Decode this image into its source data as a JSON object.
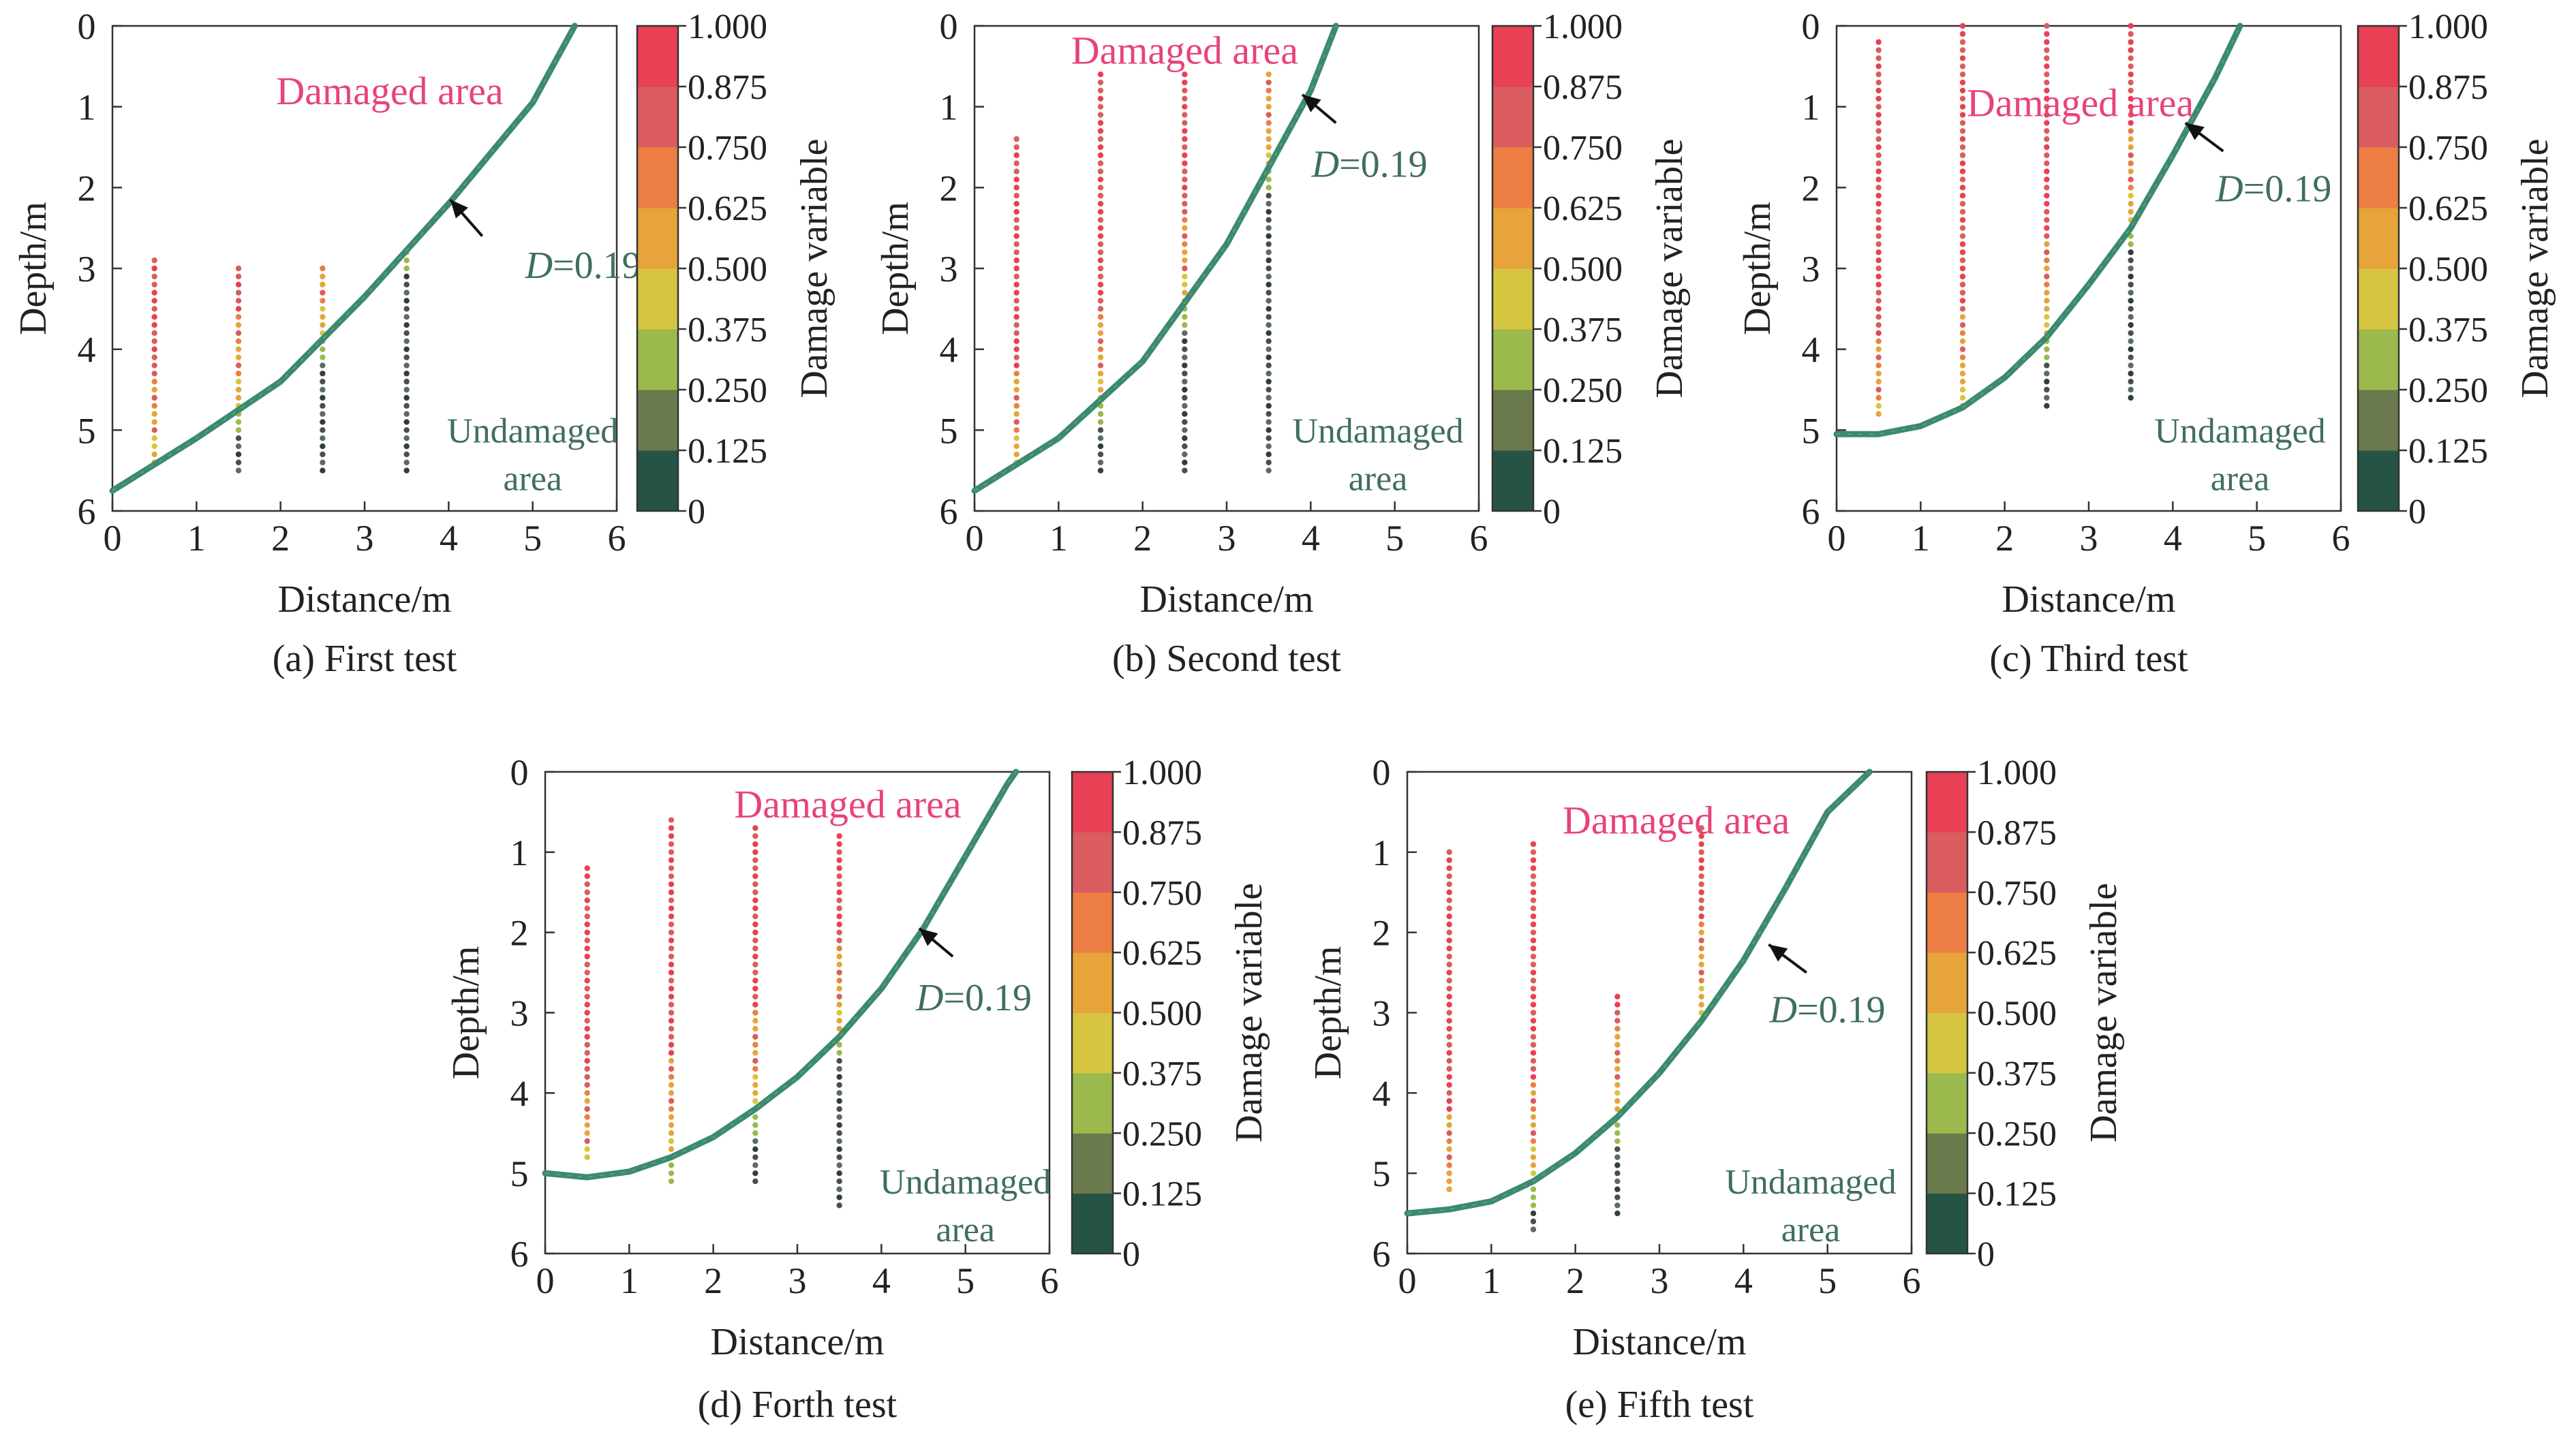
{
  "colors": {
    "curve": "#3a8a72",
    "damaged_label": "#e8437a",
    "undamaged_label": "#3f6e60",
    "d_label": "#3f6e60",
    "colorbar": [
      "#255446",
      "#6b7a4c",
      "#9bb94d",
      "#d6c541",
      "#e6a43a",
      "#ec7e44",
      "#db5c5f",
      "#e84054"
    ]
  },
  "chart_data": [
    {
      "type": "scatter",
      "caption": "(a) First test",
      "xlabel": "Distance/m",
      "ylabel": "Depth/m",
      "xlim": [
        0,
        6
      ],
      "ylim": [
        6,
        0
      ],
      "xticks": [
        "0",
        "1",
        "2",
        "3",
        "4",
        "5",
        "6"
      ],
      "yticks": [
        "0",
        "1",
        "2",
        "3",
        "4",
        "5",
        "6"
      ],
      "damaged_label": "Damaged area",
      "undamaged_label": [
        "Undamaged",
        "area"
      ],
      "d_label": {
        "var": "D",
        "value": "=0.19"
      },
      "curve": {
        "x": [
          0,
          1,
          2,
          3,
          4,
          5,
          5.5
        ],
        "y": [
          5.75,
          5.1,
          4.4,
          3.35,
          2.2,
          0.95,
          0
        ]
      },
      "scan_lines": [
        {
          "x": 0.5,
          "y_top": 2.9,
          "y_bottom": 5.45
        },
        {
          "x": 1.5,
          "y_top": 3.0,
          "y_bottom": 5.5
        },
        {
          "x": 2.5,
          "y_top": 3.0,
          "y_bottom": 5.5
        },
        {
          "x": 3.5,
          "y_top": 2.8,
          "y_bottom": 5.5
        }
      ],
      "colorbar": {
        "label": "Damage variable",
        "ticks": [
          "0",
          "0.125",
          "0.250",
          "0.375",
          "0.500",
          "0.625",
          "0.750",
          "0.875",
          "1.000"
        ]
      }
    },
    {
      "type": "scatter",
      "caption": "(b) Second test",
      "xlabel": "Distance/m",
      "ylabel": "Depth/m",
      "xlim": [
        0,
        6
      ],
      "ylim": [
        6,
        0
      ],
      "xticks": [
        "0",
        "1",
        "2",
        "3",
        "4",
        "5",
        "6"
      ],
      "yticks": [
        "0",
        "1",
        "2",
        "3",
        "4",
        "5",
        "6"
      ],
      "damaged_label": "Damaged area",
      "undamaged_label": [
        "Undamaged",
        "area"
      ],
      "d_label": {
        "var": "D",
        "value": "=0.19"
      },
      "curve": {
        "x": [
          0,
          1,
          2,
          3,
          3.5,
          4,
          4.3
        ],
        "y": [
          5.75,
          5.1,
          4.15,
          2.7,
          1.75,
          0.8,
          0
        ]
      },
      "scan_lines": [
        {
          "x": 0.5,
          "y_top": 1.4,
          "y_bottom": 5.4
        },
        {
          "x": 1.5,
          "y_top": 0.6,
          "y_bottom": 5.5
        },
        {
          "x": 2.5,
          "y_top": 0.6,
          "y_bottom": 5.5
        },
        {
          "x": 3.5,
          "y_top": 0.6,
          "y_bottom": 5.5
        }
      ],
      "colorbar": {
        "label": "Damage variable",
        "ticks": [
          "0",
          "0.125",
          "0.250",
          "0.375",
          "0.500",
          "0.625",
          "0.750",
          "0.875",
          "1.000"
        ]
      }
    },
    {
      "type": "scatter",
      "caption": "(c) Third test",
      "xlabel": "Distance/m",
      "ylabel": "Depth/m",
      "xlim": [
        0,
        6
      ],
      "ylim": [
        6,
        0
      ],
      "xticks": [
        "0",
        "1",
        "2",
        "3",
        "4",
        "5",
        "6"
      ],
      "yticks": [
        "0",
        "1",
        "2",
        "3",
        "4",
        "5",
        "6"
      ],
      "damaged_label": "Damaged area",
      "undamaged_label": [
        "Undamaged",
        "area"
      ],
      "d_label": {
        "var": "D",
        "value": "=0.19"
      },
      "curve": {
        "x": [
          0,
          0.5,
          1,
          1.5,
          2,
          2.5,
          3,
          3.5,
          4,
          4.5,
          4.8
        ],
        "y": [
          5.05,
          5.05,
          4.95,
          4.72,
          4.35,
          3.85,
          3.2,
          2.5,
          1.6,
          0.65,
          0
        ]
      },
      "scan_lines": [
        {
          "x": 0.5,
          "y_top": 0.2,
          "y_bottom": 4.85
        },
        {
          "x": 1.5,
          "y_top": 0.0,
          "y_bottom": 4.7
        },
        {
          "x": 2.5,
          "y_top": 0.0,
          "y_bottom": 4.7
        },
        {
          "x": 3.5,
          "y_top": 0.0,
          "y_bottom": 4.6
        }
      ],
      "colorbar": {
        "label": "Damage variable",
        "ticks": [
          "0",
          "0.125",
          "0.250",
          "0.375",
          "0.500",
          "0.625",
          "0.750",
          "0.875",
          "1.000"
        ]
      }
    },
    {
      "type": "scatter",
      "caption": "(d) Forth test",
      "xlabel": "Distance/m",
      "ylabel": "Depth/m",
      "xlim": [
        0,
        6
      ],
      "ylim": [
        6,
        0
      ],
      "xticks": [
        "0",
        "1",
        "2",
        "3",
        "4",
        "5",
        "6"
      ],
      "yticks": [
        "0",
        "1",
        "2",
        "3",
        "4",
        "5",
        "6"
      ],
      "damaged_label": "Damaged area",
      "undamaged_label": [
        "Undamaged",
        "area"
      ],
      "d_label": {
        "var": "D",
        "value": "=0.19"
      },
      "curve": {
        "x": [
          0,
          0.5,
          1,
          1.5,
          2,
          2.5,
          3,
          3.5,
          4,
          4.5,
          5,
          5.5,
          5.6
        ],
        "y": [
          5.0,
          5.05,
          4.98,
          4.8,
          4.55,
          4.2,
          3.8,
          3.3,
          2.7,
          1.95,
          1.05,
          0.15,
          0
        ]
      },
      "scan_lines": [
        {
          "x": 0.5,
          "y_top": 1.2,
          "y_bottom": 4.85
        },
        {
          "x": 1.5,
          "y_top": 0.6,
          "y_bottom": 5.1
        },
        {
          "x": 2.5,
          "y_top": 0.7,
          "y_bottom": 5.1
        },
        {
          "x": 3.5,
          "y_top": 0.8,
          "y_bottom": 5.45
        }
      ],
      "colorbar": {
        "label": "Damage variable",
        "ticks": [
          "0",
          "0.125",
          "0.250",
          "0.375",
          "0.500",
          "0.625",
          "0.750",
          "0.875",
          "1.000"
        ]
      }
    },
    {
      "type": "scatter",
      "caption": "(e) Fifth test",
      "xlabel": "Distance/m",
      "ylabel": "Depth/m",
      "xlim": [
        0,
        6
      ],
      "ylim": [
        6,
        0
      ],
      "xticks": [
        "0",
        "1",
        "2",
        "3",
        "4",
        "5",
        "6"
      ],
      "yticks": [
        "0",
        "1",
        "2",
        "3",
        "4",
        "5",
        "6"
      ],
      "damaged_label": "Damaged area",
      "undamaged_label": [
        "Undamaged",
        "area"
      ],
      "d_label": {
        "var": "D",
        "value": "=0.19"
      },
      "curve": {
        "x": [
          0,
          0.5,
          1,
          1.5,
          2,
          2.5,
          3,
          3.5,
          4,
          4.5,
          5,
          5.5
        ],
        "y": [
          5.5,
          5.45,
          5.35,
          5.1,
          4.75,
          4.3,
          3.75,
          3.1,
          2.35,
          1.45,
          0.5,
          0
        ]
      },
      "scan_lines": [
        {
          "x": 0.5,
          "y_top": 1.0,
          "y_bottom": 5.2
        },
        {
          "x": 1.5,
          "y_top": 0.9,
          "y_bottom": 5.7
        },
        {
          "x": 2.5,
          "y_top": 2.8,
          "y_bottom": 5.5
        },
        {
          "x": 3.5,
          "y_top": 0.7,
          "y_bottom": 3.1
        }
      ],
      "colorbar": {
        "label": "Damage variable",
        "ticks": [
          "0",
          "0.125",
          "0.250",
          "0.375",
          "0.500",
          "0.625",
          "0.750",
          "0.875",
          "1.000"
        ]
      }
    }
  ]
}
